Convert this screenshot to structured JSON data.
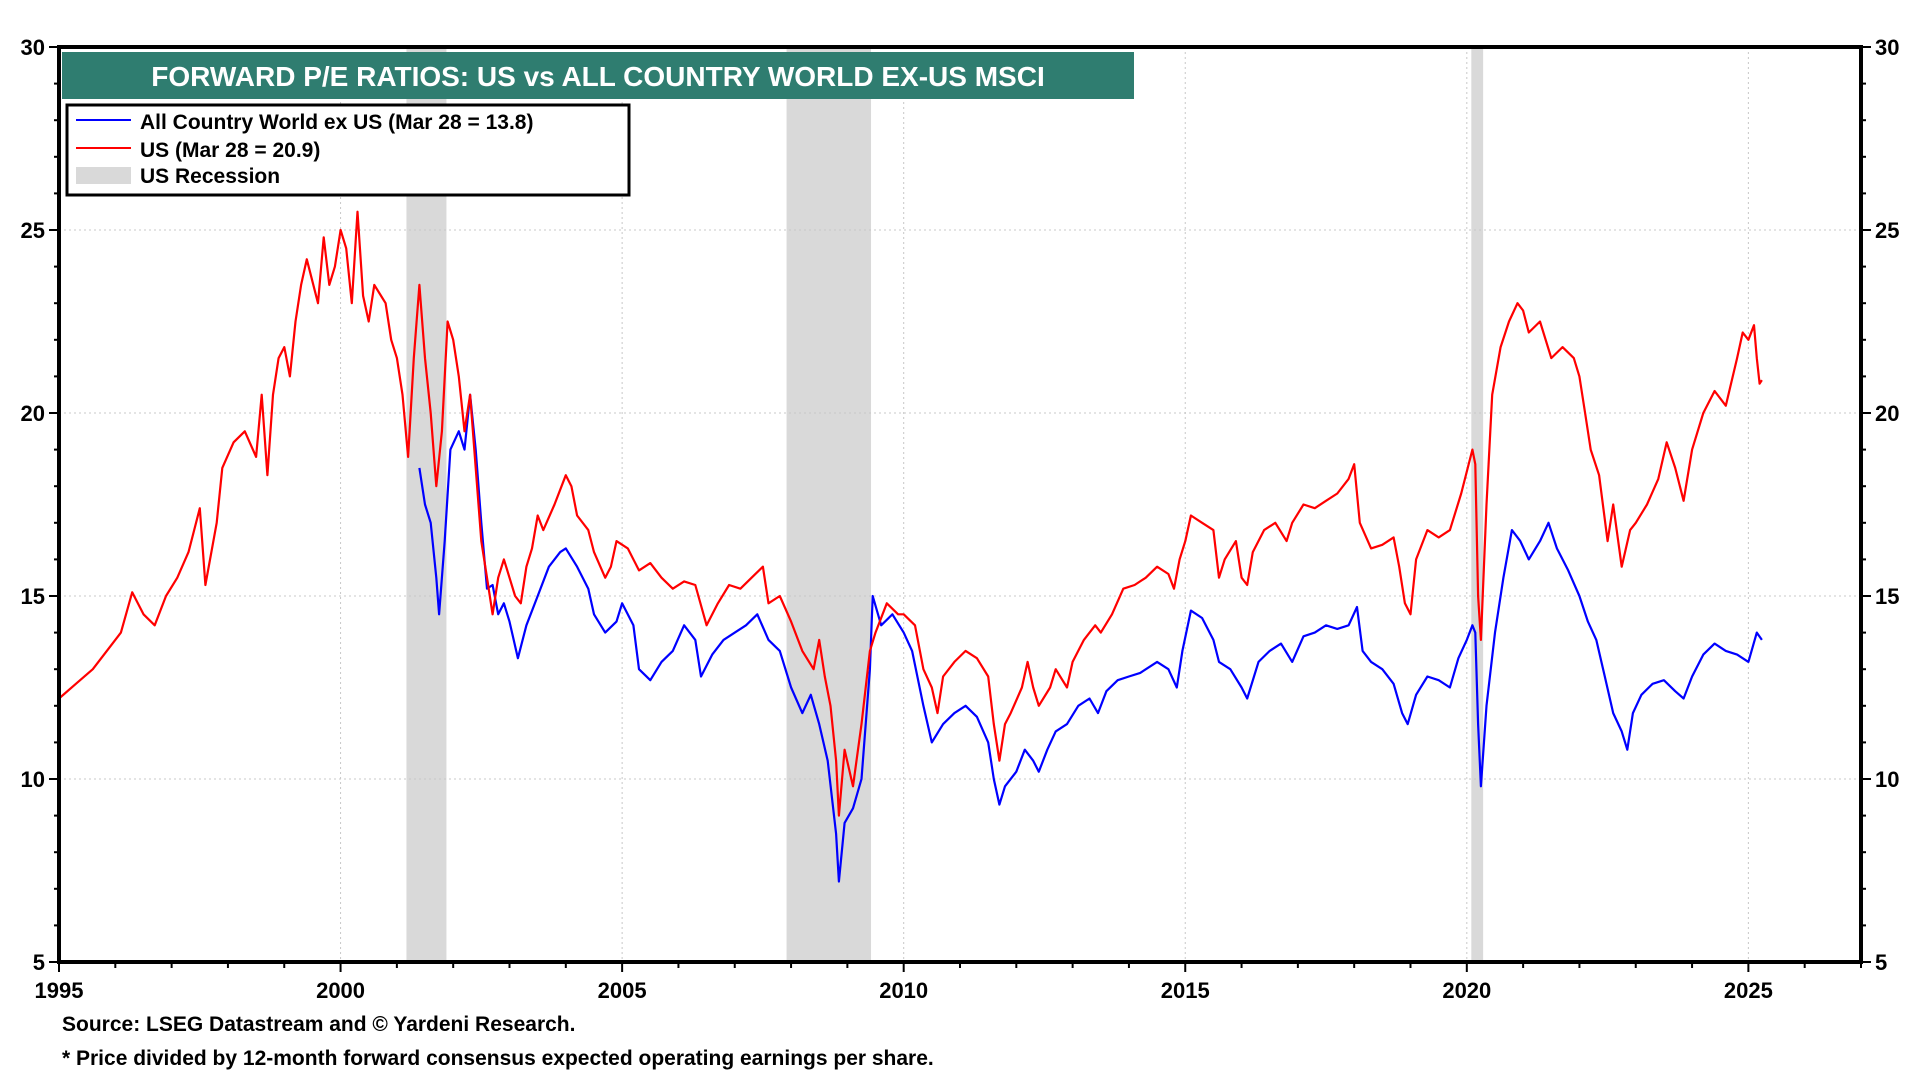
{
  "chart_data": {
    "type": "line",
    "title": "FORWARD P/E RATIOS: US vs ALL COUNTRY WORLD EX-US MSCI",
    "xlabel": "",
    "ylabel": "",
    "xlim": [
      1995,
      2027
    ],
    "ylim": [
      5,
      30
    ],
    "x_ticks": [
      1995,
      2000,
      2005,
      2010,
      2015,
      2020,
      2025
    ],
    "x_tick_labels": [
      "1995",
      "2000",
      "2005",
      "2010",
      "2015",
      "2020",
      "2025"
    ],
    "y_ticks": [
      5,
      10,
      15,
      20,
      25,
      30
    ],
    "y_tick_labels": [
      "5",
      "10",
      "15",
      "20",
      "25",
      "30"
    ],
    "y_axis_sides": [
      "left",
      "right"
    ],
    "grid": true,
    "legend_placement": "top-left",
    "legend": [
      {
        "label": "All Country World ex US (Mar 28 = 13.8)",
        "type": "line",
        "color": "#0000ff"
      },
      {
        "label": "US (Mar 28 = 20.9)",
        "type": "line",
        "color": "#ff0000"
      },
      {
        "label": "US Recession",
        "type": "band",
        "color": "#d9d9d9"
      }
    ],
    "recessions": [
      {
        "start": 2001.17,
        "end": 2001.88
      },
      {
        "start": 2007.92,
        "end": 2009.42
      },
      {
        "start": 2020.08,
        "end": 2020.29
      }
    ],
    "series": [
      {
        "name": "All Country World ex US",
        "color": "#0000ff",
        "x": [
          2001.4,
          2001.5,
          2001.6,
          2001.7,
          2001.75,
          2001.85,
          2001.95,
          2002.1,
          2002.2,
          2002.3,
          2002.4,
          2002.5,
          2002.6,
          2002.7,
          2002.8,
          2002.9,
          2003.0,
          2003.15,
          2003.3,
          2003.5,
          2003.7,
          2003.9,
          2004.0,
          2004.2,
          2004.4,
          2004.5,
          2004.7,
          2004.9,
          2005.0,
          2005.2,
          2005.3,
          2005.5,
          2005.7,
          2005.9,
          2006.1,
          2006.3,
          2006.4,
          2006.6,
          2006.8,
          2007.0,
          2007.2,
          2007.4,
          2007.6,
          2007.8,
          2008.0,
          2008.2,
          2008.35,
          2008.5,
          2008.65,
          2008.8,
          2008.85,
          2008.95,
          2009.1,
          2009.25,
          2009.4,
          2009.45,
          2009.6,
          2009.8,
          2010.0,
          2010.15,
          2010.35,
          2010.5,
          2010.7,
          2010.9,
          2011.1,
          2011.3,
          2011.5,
          2011.6,
          2011.7,
          2011.8,
          2012.0,
          2012.15,
          2012.3,
          2012.4,
          2012.55,
          2012.7,
          2012.9,
          2013.1,
          2013.3,
          2013.45,
          2013.6,
          2013.8,
          2014.0,
          2014.2,
          2014.5,
          2014.7,
          2014.85,
          2014.95,
          2015.1,
          2015.3,
          2015.5,
          2015.6,
          2015.8,
          2016.0,
          2016.1,
          2016.3,
          2016.5,
          2016.7,
          2016.9,
          2017.1,
          2017.3,
          2017.5,
          2017.7,
          2017.9,
          2018.05,
          2018.15,
          2018.3,
          2018.5,
          2018.7,
          2018.85,
          2018.95,
          2019.1,
          2019.3,
          2019.5,
          2019.7,
          2019.85,
          2020.0,
          2020.1,
          2020.15,
          2020.2,
          2020.25,
          2020.35,
          2020.5,
          2020.65,
          2020.8,
          2020.95,
          2021.1,
          2021.3,
          2021.45,
          2021.6,
          2021.8,
          2022.0,
          2022.15,
          2022.3,
          2022.45,
          2022.6,
          2022.75,
          2022.85,
          2022.95,
          2023.1,
          2023.3,
          2023.5,
          2023.7,
          2023.85,
          2024.0,
          2024.2,
          2024.4,
          2024.6,
          2024.8,
          2025.0,
          2025.15,
          2025.24
        ],
        "values": [
          18.5,
          17.5,
          17.0,
          15.5,
          14.5,
          16.5,
          19.0,
          19.5,
          19.0,
          20.5,
          19.0,
          17.0,
          15.2,
          15.3,
          14.5,
          14.8,
          14.3,
          13.3,
          14.2,
          15.0,
          15.8,
          16.2,
          16.3,
          15.8,
          15.2,
          14.5,
          14.0,
          14.3,
          14.8,
          14.2,
          13.0,
          12.7,
          13.2,
          13.5,
          14.2,
          13.8,
          12.8,
          13.4,
          13.8,
          14.0,
          14.2,
          14.5,
          13.8,
          13.5,
          12.5,
          11.8,
          12.3,
          11.5,
          10.5,
          8.5,
          7.2,
          8.8,
          9.2,
          10.0,
          13.0,
          15.0,
          14.2,
          14.5,
          14.0,
          13.5,
          12.0,
          11.0,
          11.5,
          11.8,
          12.0,
          11.7,
          11.0,
          10.0,
          9.3,
          9.8,
          10.2,
          10.8,
          10.5,
          10.2,
          10.8,
          11.3,
          11.5,
          12.0,
          12.2,
          11.8,
          12.4,
          12.7,
          12.8,
          12.9,
          13.2,
          13.0,
          12.5,
          13.5,
          14.6,
          14.4,
          13.8,
          13.2,
          13.0,
          12.5,
          12.2,
          13.2,
          13.5,
          13.7,
          13.2,
          13.9,
          14.0,
          14.2,
          14.1,
          14.2,
          14.7,
          13.5,
          13.2,
          13.0,
          12.6,
          11.8,
          11.5,
          12.3,
          12.8,
          12.7,
          12.5,
          13.3,
          13.8,
          14.2,
          14.0,
          11.5,
          9.8,
          12.0,
          14.0,
          15.5,
          16.8,
          16.5,
          16.0,
          16.5,
          17.0,
          16.3,
          15.7,
          15.0,
          14.3,
          13.8,
          12.8,
          11.8,
          11.3,
          10.8,
          11.8,
          12.3,
          12.6,
          12.7,
          12.4,
          12.2,
          12.8,
          13.4,
          13.7,
          13.5,
          13.4,
          13.2,
          14.0,
          13.8
        ]
      },
      {
        "name": "US",
        "color": "#ff0000",
        "x": [
          1995.0,
          1995.3,
          1995.6,
          1995.9,
          1996.1,
          1996.3,
          1996.5,
          1996.7,
          1996.9,
          1997.1,
          1997.3,
          1997.5,
          1997.6,
          1997.8,
          1997.9,
          1998.1,
          1998.3,
          1998.5,
          1998.6,
          1998.7,
          1998.8,
          1998.9,
          1999.0,
          1999.1,
          1999.2,
          1999.3,
          1999.4,
          1999.6,
          1999.7,
          1999.8,
          1999.9,
          2000.0,
          2000.1,
          2000.2,
          2000.3,
          2000.4,
          2000.5,
          2000.6,
          2000.8,
          2000.9,
          2001.0,
          2001.1,
          2001.2,
          2001.3,
          2001.4,
          2001.5,
          2001.6,
          2001.7,
          2001.8,
          2001.9,
          2002.0,
          2002.1,
          2002.2,
          2002.3,
          2002.4,
          2002.5,
          2002.6,
          2002.7,
          2002.8,
          2002.9,
          2003.0,
          2003.1,
          2003.2,
          2003.3,
          2003.4,
          2003.5,
          2003.6,
          2003.8,
          2004.0,
          2004.1,
          2004.2,
          2004.4,
          2004.5,
          2004.7,
          2004.8,
          2004.9,
          2005.1,
          2005.3,
          2005.5,
          2005.7,
          2005.9,
          2006.1,
          2006.3,
          2006.5,
          2006.7,
          2006.9,
          2007.1,
          2007.3,
          2007.5,
          2007.6,
          2007.8,
          2008.0,
          2008.2,
          2008.4,
          2008.5,
          2008.6,
          2008.7,
          2008.8,
          2008.85,
          2008.95,
          2009.1,
          2009.25,
          2009.4,
          2009.5,
          2009.7,
          2009.9,
          2010.0,
          2010.2,
          2010.35,
          2010.5,
          2010.6,
          2010.7,
          2010.9,
          2011.1,
          2011.3,
          2011.5,
          2011.6,
          2011.7,
          2011.8,
          2011.9,
          2012.1,
          2012.2,
          2012.3,
          2012.4,
          2012.6,
          2012.7,
          2012.9,
          2013.0,
          2013.2,
          2013.4,
          2013.5,
          2013.7,
          2013.9,
          2014.1,
          2014.3,
          2014.5,
          2014.7,
          2014.8,
          2014.9,
          2015.0,
          2015.1,
          2015.3,
          2015.5,
          2015.6,
          2015.7,
          2015.9,
          2016.0,
          2016.1,
          2016.2,
          2016.4,
          2016.6,
          2016.8,
          2016.9,
          2017.1,
          2017.3,
          2017.5,
          2017.7,
          2017.9,
          2018.0,
          2018.1,
          2018.3,
          2018.5,
          2018.7,
          2018.8,
          2018.9,
          2019.0,
          2019.1,
          2019.3,
          2019.5,
          2019.7,
          2019.9,
          2020.1,
          2020.15,
          2020.2,
          2020.25,
          2020.35,
          2020.45,
          2020.6,
          2020.75,
          2020.9,
          2021.0,
          2021.1,
          2021.3,
          2021.5,
          2021.7,
          2021.9,
          2022.0,
          2022.1,
          2022.2,
          2022.35,
          2022.5,
          2022.6,
          2022.75,
          2022.9,
          2023.0,
          2023.2,
          2023.4,
          2023.55,
          2023.7,
          2023.85,
          2024.0,
          2024.2,
          2024.4,
          2024.6,
          2024.8,
          2024.9,
          2025.0,
          2025.1,
          2025.15,
          2025.2,
          2025.24
        ],
        "values": [
          12.2,
          12.6,
          13.0,
          13.6,
          14.0,
          15.1,
          14.5,
          14.2,
          15.0,
          15.5,
          16.2,
          17.4,
          15.3,
          17.0,
          18.5,
          19.2,
          19.5,
          18.8,
          20.5,
          18.3,
          20.5,
          21.5,
          21.8,
          21.0,
          22.5,
          23.5,
          24.2,
          23.0,
          24.8,
          23.5,
          24.0,
          25.0,
          24.5,
          23.0,
          25.5,
          23.2,
          22.5,
          23.5,
          23.0,
          22.0,
          21.5,
          20.5,
          18.8,
          21.5,
          23.5,
          21.5,
          20.0,
          18.0,
          19.5,
          22.5,
          22.0,
          21.0,
          19.5,
          20.5,
          18.5,
          16.5,
          15.5,
          14.5,
          15.5,
          16.0,
          15.5,
          15.0,
          14.8,
          15.8,
          16.3,
          17.2,
          16.8,
          17.5,
          18.3,
          18.0,
          17.2,
          16.8,
          16.2,
          15.5,
          15.8,
          16.5,
          16.3,
          15.7,
          15.9,
          15.5,
          15.2,
          15.4,
          15.3,
          14.2,
          14.8,
          15.3,
          15.2,
          15.5,
          15.8,
          14.8,
          15.0,
          14.3,
          13.5,
          13.0,
          13.8,
          12.8,
          12.0,
          10.5,
          9.0,
          10.8,
          9.8,
          11.5,
          13.5,
          14.0,
          14.8,
          14.5,
          14.5,
          14.2,
          13.0,
          12.5,
          11.8,
          12.8,
          13.2,
          13.5,
          13.3,
          12.8,
          11.5,
          10.5,
          11.5,
          11.8,
          12.5,
          13.2,
          12.5,
          12.0,
          12.5,
          13.0,
          12.5,
          13.2,
          13.8,
          14.2,
          14.0,
          14.5,
          15.2,
          15.3,
          15.5,
          15.8,
          15.6,
          15.2,
          16.0,
          16.5,
          17.2,
          17.0,
          16.8,
          15.5,
          16.0,
          16.5,
          15.5,
          15.3,
          16.2,
          16.8,
          17.0,
          16.5,
          17.0,
          17.5,
          17.4,
          17.6,
          17.8,
          18.2,
          18.6,
          17.0,
          16.3,
          16.4,
          16.6,
          15.8,
          14.8,
          14.5,
          16.0,
          16.8,
          16.6,
          16.8,
          17.8,
          19.0,
          18.6,
          15.0,
          13.8,
          17.5,
          20.5,
          21.8,
          22.5,
          23.0,
          22.8,
          22.2,
          22.5,
          21.5,
          21.8,
          21.5,
          21.0,
          20.0,
          19.0,
          18.3,
          16.5,
          17.5,
          15.8,
          16.8,
          17.0,
          17.5,
          18.2,
          19.2,
          18.5,
          17.6,
          19.0,
          20.0,
          20.6,
          20.2,
          21.5,
          22.2,
          22.0,
          22.4,
          21.5,
          20.8,
          20.9
        ]
      }
    ]
  },
  "footnotes": {
    "source": "Source: LSEG Datastream and © Yardeni Research.",
    "definition": "* Price divided by 12-month forward consensus expected operating earnings per share."
  }
}
